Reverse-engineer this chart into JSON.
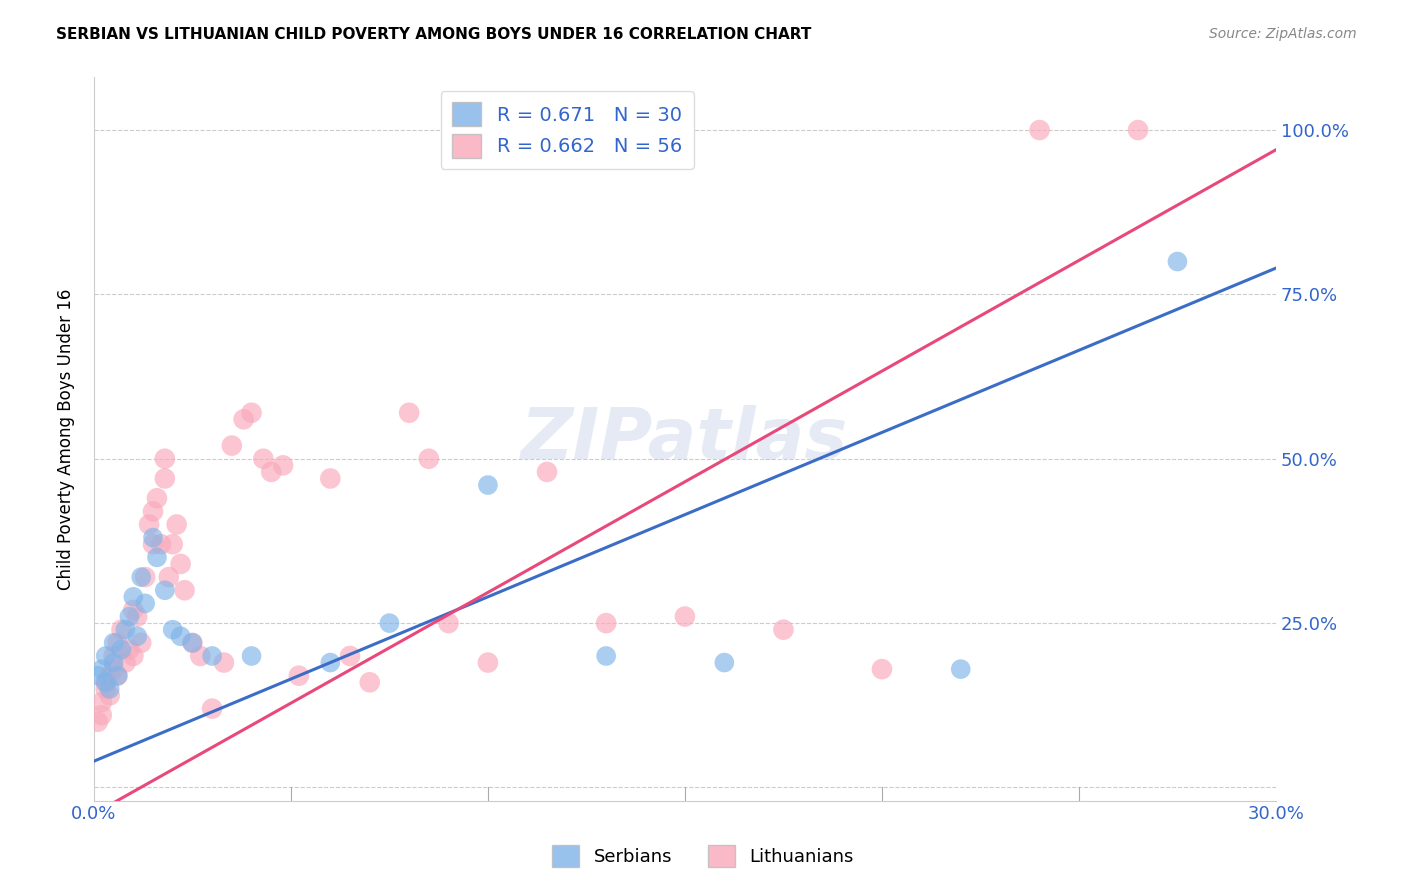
{
  "title": "SERBIAN VS LITHUANIAN CHILD POVERTY AMONG BOYS UNDER 16 CORRELATION CHART",
  "source": "Source: ZipAtlas.com",
  "ylabel": "Child Poverty Among Boys Under 16",
  "xlim": [
    0.0,
    0.3
  ],
  "ylim": [
    -0.02,
    1.08
  ],
  "xticks": [
    0.0,
    0.05,
    0.1,
    0.15,
    0.2,
    0.25,
    0.3
  ],
  "xtick_labels": [
    "0.0%",
    "",
    "",
    "",
    "",
    "",
    "30.0%"
  ],
  "ytick_labels": [
    "",
    "25.0%",
    "50.0%",
    "75.0%",
    "100.0%"
  ],
  "yticks": [
    0.0,
    0.25,
    0.5,
    0.75,
    1.0
  ],
  "serbian_color": "#7EB3E8",
  "lithuanian_color": "#F9A8BA",
  "serbian_line_color": "#3B6DC7",
  "lithuanian_line_color": "#E8497A",
  "serbian_R": 0.671,
  "serbian_N": 30,
  "lithuanian_R": 0.662,
  "lithuanian_N": 56,
  "watermark": "ZIPatlas",
  "serbian_x": [
    0.001,
    0.002,
    0.003,
    0.003,
    0.004,
    0.005,
    0.005,
    0.006,
    0.007,
    0.008,
    0.009,
    0.01,
    0.011,
    0.012,
    0.013,
    0.015,
    0.016,
    0.018,
    0.02,
    0.022,
    0.025,
    0.03,
    0.04,
    0.06,
    0.075,
    0.1,
    0.13,
    0.16,
    0.22,
    0.275
  ],
  "serbian_y": [
    0.17,
    0.18,
    0.16,
    0.2,
    0.15,
    0.19,
    0.22,
    0.17,
    0.21,
    0.24,
    0.26,
    0.29,
    0.23,
    0.32,
    0.28,
    0.38,
    0.35,
    0.3,
    0.24,
    0.23,
    0.22,
    0.2,
    0.2,
    0.19,
    0.25,
    0.46,
    0.2,
    0.19,
    0.18,
    0.8
  ],
  "lithuanian_x": [
    0.001,
    0.002,
    0.002,
    0.003,
    0.003,
    0.004,
    0.004,
    0.005,
    0.005,
    0.006,
    0.006,
    0.007,
    0.008,
    0.009,
    0.01,
    0.01,
    0.011,
    0.012,
    0.013,
    0.014,
    0.015,
    0.015,
    0.016,
    0.017,
    0.018,
    0.018,
    0.019,
    0.02,
    0.021,
    0.022,
    0.023,
    0.025,
    0.027,
    0.03,
    0.033,
    0.035,
    0.038,
    0.04,
    0.043,
    0.045,
    0.048,
    0.052,
    0.06,
    0.065,
    0.07,
    0.08,
    0.085,
    0.09,
    0.1,
    0.115,
    0.13,
    0.15,
    0.175,
    0.2,
    0.24,
    0.265
  ],
  "lithuanian_y": [
    0.1,
    0.13,
    0.11,
    0.15,
    0.16,
    0.14,
    0.17,
    0.18,
    0.2,
    0.17,
    0.22,
    0.24,
    0.19,
    0.21,
    0.2,
    0.27,
    0.26,
    0.22,
    0.32,
    0.4,
    0.37,
    0.42,
    0.44,
    0.37,
    0.47,
    0.5,
    0.32,
    0.37,
    0.4,
    0.34,
    0.3,
    0.22,
    0.2,
    0.12,
    0.19,
    0.52,
    0.56,
    0.57,
    0.5,
    0.48,
    0.49,
    0.17,
    0.47,
    0.2,
    0.16,
    0.57,
    0.5,
    0.25,
    0.19,
    0.48,
    0.25,
    0.26,
    0.24,
    0.18,
    1.0,
    1.0
  ],
  "serbian_line_x": [
    0.0,
    0.3
  ],
  "serbian_line_y": [
    0.04,
    0.79
  ],
  "lithuanian_line_x": [
    0.0,
    0.3
  ],
  "lithuanian_line_y": [
    -0.04,
    0.97
  ]
}
